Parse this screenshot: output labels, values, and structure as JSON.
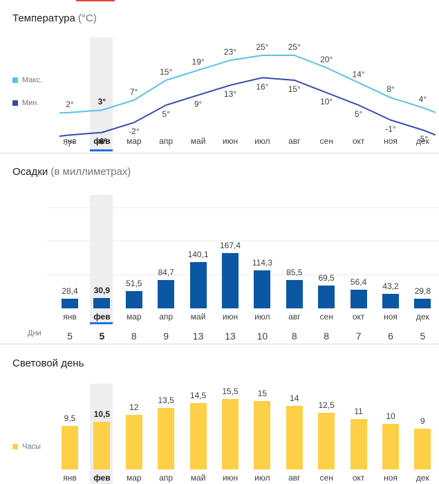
{
  "months": [
    "янв",
    "фев",
    "мар",
    "апр",
    "май",
    "июн",
    "июл",
    "авг",
    "сен",
    "окт",
    "ноя",
    "дек"
  ],
  "selected_index": 1,
  "colors": {
    "max": "#5bc0eb",
    "min": "#3949ab",
    "precip": "#0b57a4",
    "daylight": "#fdd047",
    "selected": "#1a73e8"
  },
  "temperature": {
    "title": "Температура",
    "unit": "(°C)",
    "legend_max": "Макс.",
    "legend_min": "Мин."
  },
  "precipitation": {
    "title": "Осадки",
    "unit": "(в миллиметрах)",
    "days_label": "Дни",
    "days": [
      "5",
      "5",
      "8",
      "9",
      "13",
      "13",
      "10",
      "8",
      "8",
      "7",
      "6",
      "5"
    ]
  },
  "daylight": {
    "title": "Световой день",
    "legend": "Часы"
  },
  "chart_data": [
    {
      "type": "line",
      "title": "Температура (°C)",
      "categories": [
        "янв",
        "фев",
        "мар",
        "апр",
        "май",
        "июн",
        "июл",
        "авг",
        "сен",
        "окт",
        "ноя",
        "дек"
      ],
      "series": [
        {
          "name": "Макс.",
          "values": [
            2,
            3,
            7,
            15,
            19,
            23,
            25,
            25,
            20,
            14,
            8,
            4
          ],
          "labels": [
            "2°",
            "3°",
            "7°",
            "15°",
            "19°",
            "23°",
            "25°",
            "25°",
            "20°",
            "14°",
            "8°",
            "4°"
          ]
        },
        {
          "name": "Мин.",
          "values": [
            -7,
            -6,
            -2,
            5,
            9,
            13,
            16,
            15,
            10,
            5,
            -1,
            -5
          ],
          "labels": [
            "-7°",
            "-6°",
            "-2°",
            "5°",
            "9°",
            "13°",
            "16°",
            "15°",
            "10°",
            "5°",
            "-1°",
            "-5°"
          ]
        }
      ]
    },
    {
      "type": "bar",
      "title": "Осадки (в миллиметрах)",
      "categories": [
        "янв",
        "фев",
        "мар",
        "апр",
        "май",
        "июн",
        "июл",
        "авг",
        "сен",
        "окт",
        "ноя",
        "дек"
      ],
      "values": [
        28.4,
        30.9,
        51.5,
        84.7,
        140.1,
        167.4,
        114.3,
        85.5,
        69.5,
        56.4,
        43.2,
        29.8
      ],
      "labels": [
        "28,4",
        "30,9",
        "51,5",
        "84,7",
        "140,1",
        "167,4",
        "114,3",
        "85,5",
        "69,5",
        "56,4",
        "43,2",
        "29,8"
      ],
      "ylim": [
        0,
        300
      ]
    },
    {
      "type": "bar",
      "title": "Световой день",
      "categories": [
        "янв",
        "фев",
        "мар",
        "апр",
        "май",
        "июн",
        "июл",
        "авг",
        "сен",
        "окт",
        "ноя",
        "дек"
      ],
      "values": [
        9.5,
        10.5,
        12,
        13.5,
        14.5,
        15.5,
        15,
        14,
        12.5,
        11,
        10,
        9
      ],
      "labels": [
        "9,5",
        "10,5",
        "12",
        "13,5",
        "14,5",
        "15,5",
        "15",
        "14",
        "12,5",
        "11",
        "10",
        "9"
      ],
      "ylim": [
        0,
        16
      ]
    }
  ]
}
